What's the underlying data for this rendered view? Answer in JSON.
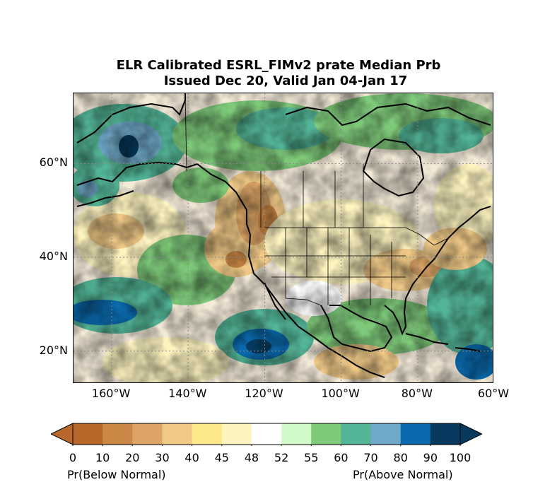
{
  "title_line1": "ELR Calibrated ESRL_FIMv2 prate Median Prb",
  "title_line2": "Issued Dec 20, Valid Jan 04-Jan 17",
  "lat_labels": [
    {
      "text": "60°N",
      "lat": 60
    },
    {
      "text": "40°N",
      "lat": 40
    },
    {
      "text": "20°N",
      "lat": 20
    }
  ],
  "lon_labels": [
    {
      "text": "160°W",
      "lon": -160
    },
    {
      "text": "140°W",
      "lon": -140
    },
    {
      "text": "120°W",
      "lon": -120
    },
    {
      "text": "100°W",
      "lon": -100
    },
    {
      "text": "80°W",
      "lon": -80
    },
    {
      "text": "60°W",
      "lon": -60
    }
  ],
  "map_extent": {
    "lon_min": -170,
    "lon_max": -60,
    "lat_min": 13,
    "lat_max": 75
  },
  "colorbar": {
    "ticks": [
      "0",
      "10",
      "20",
      "30",
      "40",
      "45",
      "48",
      "52",
      "55",
      "60",
      "70",
      "80",
      "90",
      "100"
    ],
    "colors": [
      "#b8682a",
      "#c98644",
      "#dca566",
      "#f0c987",
      "#fde88a",
      "#fdf3bf",
      "#ffffff",
      "#d0fac8",
      "#7ec97a",
      "#53b597",
      "#6fa8c9",
      "#0b6aad",
      "#073a5e"
    ],
    "under_color": "#b8682a",
    "over_color": "#073a5e",
    "left_label": "Pr(Below Normal)",
    "right_label": "Pr(Above Normal)"
  }
}
